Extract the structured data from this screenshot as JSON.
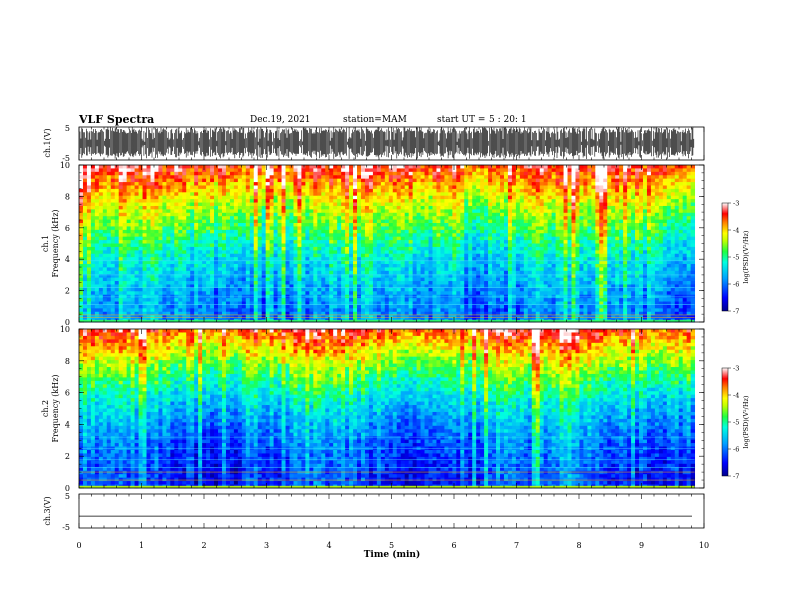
{
  "header": {
    "title": "VLF Spectra",
    "date": "Dec.19, 2021",
    "station": "station=MAM",
    "start_label": "start  UT  =",
    "start_value": "5 : 20: 1"
  },
  "chart_data": [
    {
      "id": "ch1-waveform",
      "type": "line",
      "ylabel": "ch.1(V)",
      "ylim": [
        -5,
        5
      ],
      "yticks": [
        5,
        -5
      ],
      "xlim": [
        0,
        10
      ],
      "description_of_trace": "dense burst-like waveform"
    },
    {
      "id": "ch1-spectrogram",
      "type": "heatmap",
      "ylabel": "ch.1\nFrequency (kHz)",
      "ylim": [
        0,
        10
      ],
      "yticks": [
        0,
        2,
        4,
        6,
        8,
        10
      ],
      "xlim": [
        0,
        10
      ],
      "data_xmax": 9.85,
      "colorbar": {
        "label": "log(PSD)(V²/Hz)",
        "range": [
          -7,
          -3
        ],
        "ticks": [
          -3,
          -4,
          -5,
          -6,
          -7
        ]
      }
    },
    {
      "id": "ch2-spectrogram",
      "type": "heatmap",
      "ylabel": "ch.2\nFrequency (kHz)",
      "ylim": [
        0,
        10
      ],
      "yticks": [
        0,
        2,
        4,
        6,
        8,
        10
      ],
      "xlim": [
        0,
        10
      ],
      "data_xmax": 9.85,
      "colorbar": {
        "label": "log(PSD)(V²/Hz)",
        "range": [
          -7,
          -3
        ],
        "ticks": [
          -3,
          -4,
          -5,
          -6,
          -7
        ]
      }
    },
    {
      "id": "ch3-waveform",
      "type": "line",
      "ylabel": "ch.3(V)",
      "ylim": [
        -5,
        5
      ],
      "yticks": [
        5,
        -5
      ],
      "xlim": [
        0,
        10
      ],
      "value": -1.5
    }
  ],
  "xaxis": {
    "label": "Time  (min)",
    "ticks": [
      0,
      1,
      2,
      3,
      4,
      5,
      6,
      7,
      8,
      9,
      10
    ]
  },
  "colors": {
    "colormap": [
      "#00008c",
      "#0000ff",
      "#0080ff",
      "#00e5ff",
      "#00ff80",
      "#80ff00",
      "#ffff00",
      "#ff8000",
      "#ff0000",
      "#ff9999",
      "#ffffff"
    ]
  }
}
